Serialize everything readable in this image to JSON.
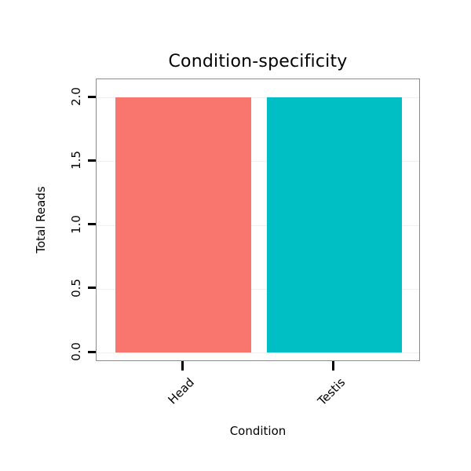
{
  "chart_data": {
    "type": "bar",
    "title": "Condition-specificity",
    "xlabel": "Condition",
    "ylabel": "Total Reads",
    "categories": [
      "Head",
      "Testis"
    ],
    "values": [
      2,
      2
    ],
    "bar_colors": [
      "#F8766D",
      "#00BFC4"
    ],
    "ylim": [
      0,
      2
    ],
    "yticks": [
      {
        "label": "0.0",
        "value": 0.0
      },
      {
        "label": "0.5",
        "value": 0.5
      },
      {
        "label": "1.0",
        "value": 1.0
      },
      {
        "label": "1.5",
        "value": 1.5
      },
      {
        "label": "2.0",
        "value": 2.0
      }
    ],
    "grid": true,
    "legend": "none",
    "panel_border_color": "#8c8c8c"
  }
}
